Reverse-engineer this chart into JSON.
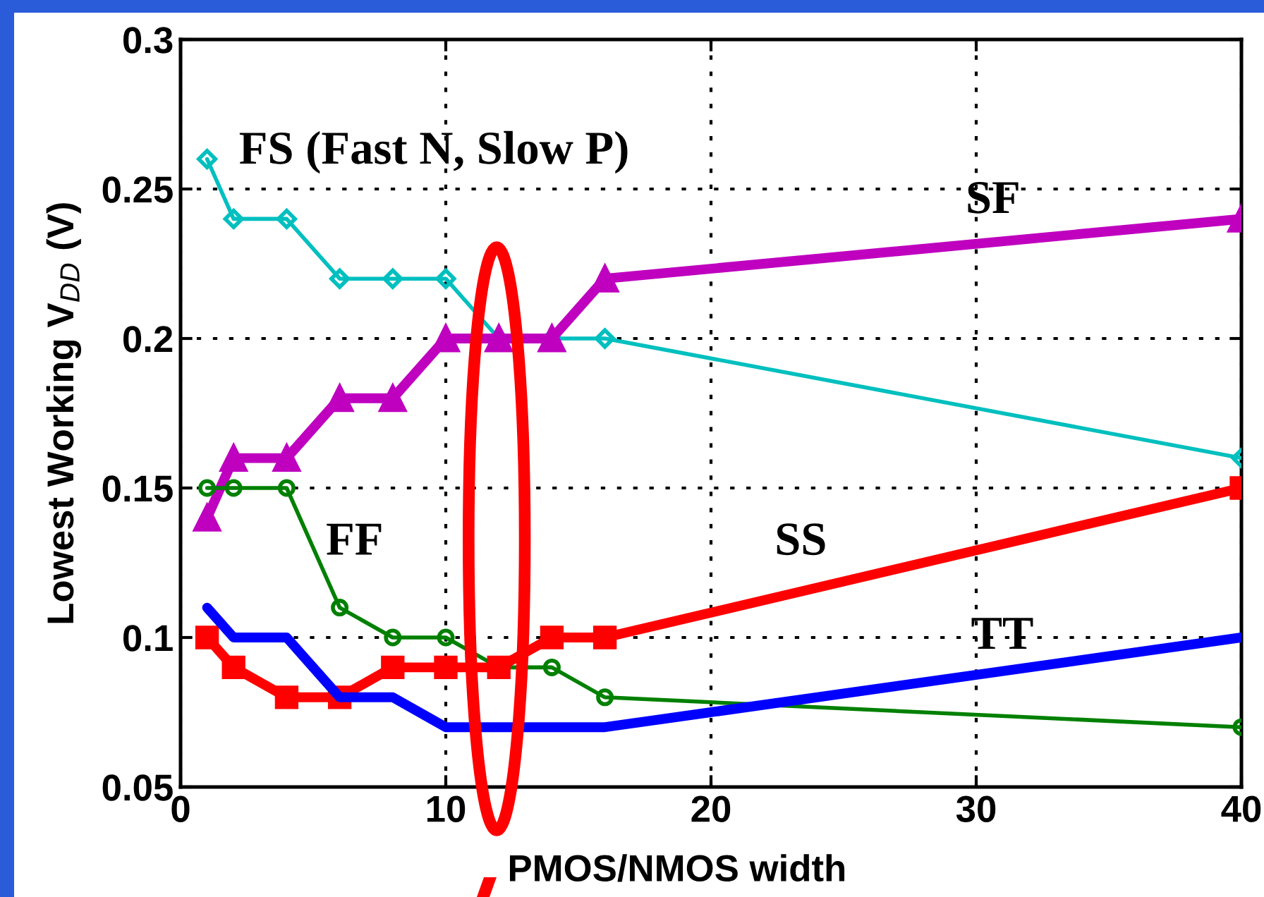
{
  "chart_data": {
    "type": "line",
    "xlabel": "PMOS/NMOS width",
    "ylabel": "Lowest Working V$_{DD}$ (V)",
    "x": [
      1,
      2,
      4,
      6,
      8,
      10,
      12,
      14,
      16,
      40
    ],
    "series": [
      {
        "name": "FS (Fast N, Slow P)",
        "color": "#00bfbf",
        "marker": "diamond",
        "values": [
          0.26,
          0.24,
          0.24,
          0.22,
          0.22,
          0.22,
          0.2,
          0.2,
          0.2,
          0.16
        ]
      },
      {
        "name": "SF",
        "color": "#bf00bf",
        "marker": "triangle",
        "values": [
          0.14,
          0.16,
          0.16,
          0.18,
          0.18,
          0.2,
          0.2,
          0.2,
          0.22,
          0.24
        ]
      },
      {
        "name": "FF",
        "color": "#008000",
        "marker": "circle",
        "values": [
          0.15,
          0.15,
          0.15,
          0.11,
          0.1,
          0.1,
          0.09,
          0.09,
          0.08,
          0.07
        ]
      },
      {
        "name": "SS",
        "color": "#ff0000",
        "marker": "square",
        "values": [
          0.1,
          0.09,
          0.08,
          0.08,
          0.09,
          0.09,
          0.09,
          0.1,
          0.1,
          0.15
        ]
      },
      {
        "name": "TT",
        "color": "#0000ff",
        "marker": "none",
        "values": [
          0.11,
          0.1,
          0.1,
          0.08,
          0.08,
          0.07,
          0.07,
          0.07,
          0.07,
          0.1
        ]
      }
    ],
    "xlim": [
      0,
      40
    ],
    "xticks": [
      0,
      10,
      20,
      30,
      40
    ],
    "ylim": [
      0.05,
      0.3
    ],
    "yticks": [
      0.05,
      0.1,
      0.15,
      0.2,
      0.25,
      0.3
    ],
    "grid": true,
    "line_style": "solid",
    "legend": false
  }
}
